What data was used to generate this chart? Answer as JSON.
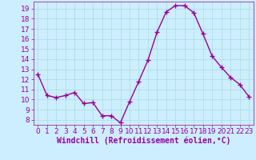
{
  "x": [
    0,
    1,
    2,
    3,
    4,
    5,
    6,
    7,
    8,
    9,
    10,
    11,
    12,
    13,
    14,
    15,
    16,
    17,
    18,
    19,
    20,
    21,
    22,
    23
  ],
  "y": [
    12.5,
    10.4,
    10.2,
    10.4,
    10.7,
    9.6,
    9.7,
    8.4,
    8.4,
    7.7,
    9.8,
    11.8,
    13.9,
    16.7,
    18.7,
    19.3,
    19.3,
    18.6,
    16.5,
    14.3,
    13.2,
    12.2,
    11.5,
    10.3
  ],
  "line_color": "#990099",
  "marker": "+",
  "marker_size": 4,
  "bg_color": "#cceeff",
  "grid_color": "#aadddd",
  "xlabel": "Windchill (Refroidissement éolien,°C)",
  "xlabel_color": "#990099",
  "tick_color": "#990099",
  "ylim": [
    7.5,
    19.7
  ],
  "xlim": [
    -0.5,
    23.5
  ],
  "yticks": [
    8,
    9,
    10,
    11,
    12,
    13,
    14,
    15,
    16,
    17,
    18,
    19
  ],
  "xticks": [
    0,
    1,
    2,
    3,
    4,
    5,
    6,
    7,
    8,
    9,
    10,
    11,
    12,
    13,
    14,
    15,
    16,
    17,
    18,
    19,
    20,
    21,
    22,
    23
  ],
  "xlabel_fontsize": 7,
  "tick_fontsize": 6.5,
  "linewidth": 1.0
}
